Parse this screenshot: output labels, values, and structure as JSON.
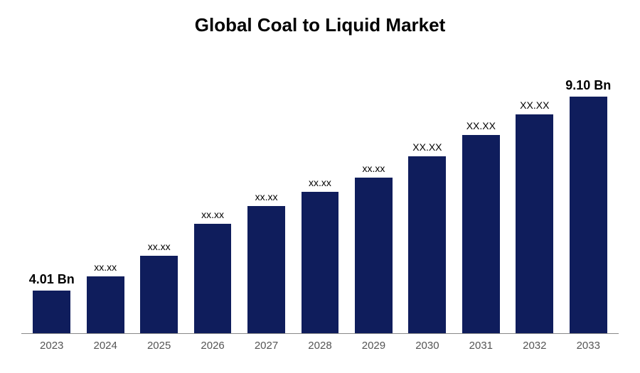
{
  "chart": {
    "type": "bar",
    "title": "Global Coal to Liquid Market",
    "title_fontsize": 26,
    "title_color": "#000000",
    "title_weight": "bold",
    "background_color": "#ffffff",
    "axis_line_color": "#888888",
    "categories": [
      "2023",
      "2024",
      "2025",
      "2026",
      "2027",
      "2028",
      "2029",
      "2030",
      "2031",
      "2032",
      "2033"
    ],
    "values": [
      60,
      80,
      110,
      155,
      180,
      200,
      220,
      250,
      280,
      310,
      335
    ],
    "value_max": 400,
    "labels": [
      "4.01 Bn",
      "xx.xx",
      "xx.xx",
      "xx.xx",
      "xx.xx",
      "xx.xx",
      "xx.xx",
      "XX.XX",
      "XX.XX",
      "XX.XX",
      "9.10 Bn"
    ],
    "label_bold": [
      true,
      false,
      false,
      false,
      false,
      false,
      false,
      false,
      false,
      false,
      true
    ],
    "label_fontsize_small": 14,
    "label_fontsize_large": 18,
    "bar_color": "#0f1d5c",
    "bar_width_pct": 70,
    "tick_fontsize": 15,
    "tick_color": "#555555",
    "label_color": "#000000"
  }
}
